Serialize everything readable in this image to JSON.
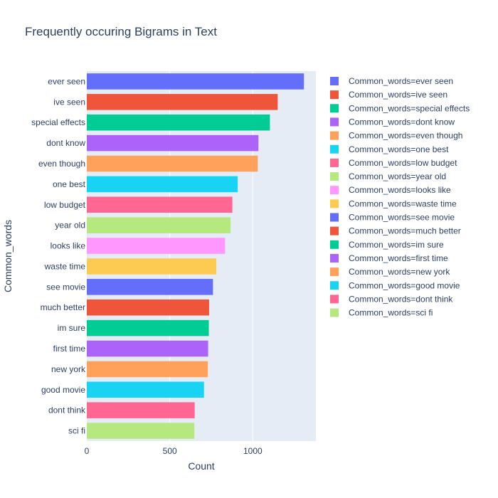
{
  "chart_data": {
    "type": "bar",
    "orientation": "horizontal",
    "title": "Frequently occuring Bigrams in Text",
    "xlabel": "Count",
    "ylabel": "Common_words",
    "xlim": [
      0,
      1380
    ],
    "xticks": [
      0,
      500,
      1000
    ],
    "xtick_labels": [
      "0",
      "500",
      "1000"
    ],
    "grid": true,
    "legend_position": "right",
    "legend_prefix": "Common_words=",
    "categories": [
      "ever seen",
      "ive seen",
      "special effects",
      "dont know",
      "even though",
      "one best",
      "low budget",
      "year old",
      "looks like",
      "waste time",
      "see movie",
      "much better",
      "im sure",
      "first time",
      "new york",
      "good movie",
      "dont think",
      "sci fi"
    ],
    "values": [
      1308,
      1150,
      1103,
      1034,
      1030,
      909,
      877,
      866,
      833,
      780,
      760,
      737,
      735,
      731,
      729,
      706,
      650,
      648
    ],
    "colors": [
      "#636efa",
      "#ef553b",
      "#00cc96",
      "#ab63fa",
      "#ffa15a",
      "#19d3f3",
      "#ff6692",
      "#b6e880",
      "#ff97ff",
      "#fecb52",
      "#636efa",
      "#ef553b",
      "#00cc96",
      "#ab63fa",
      "#ffa15a",
      "#19d3f3",
      "#ff6692",
      "#b6e880"
    ]
  }
}
